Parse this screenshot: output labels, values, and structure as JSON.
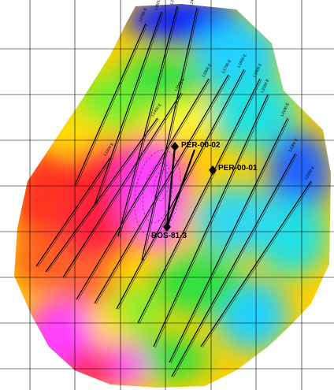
{
  "map": {
    "wells": [
      {
        "name": "PER-00-02"
      },
      {
        "name": "PER-00-01"
      },
      {
        "name": "BOS-81-3"
      }
    ],
    "seismic_lines": [
      {
        "label": "L1300 E"
      },
      {
        "label": "L1400 E"
      },
      {
        "label": "L1500 E"
      },
      {
        "label": "L1600 E"
      },
      {
        "label": "L1700 E"
      },
      {
        "label": "L1800 E"
      },
      {
        "label": "L1900 E"
      },
      {
        "label": "L2000 E"
      },
      {
        "label": "L2100 E"
      },
      {
        "label": "L2200 E"
      },
      {
        "label": "L2300 E"
      },
      {
        "label": "L2400 E"
      },
      {
        "label": "L2500 E"
      },
      {
        "label": "L2600 E"
      },
      {
        "label": "L2700 E"
      }
    ],
    "colors": {
      "high": "#ff44ff",
      "mid_high": "#ff2020",
      "mid": "#ffe000",
      "mid_low": "#20e040",
      "low_mid": "#20e0e0",
      "low": "#1020ff",
      "grid": "#000000"
    }
  }
}
